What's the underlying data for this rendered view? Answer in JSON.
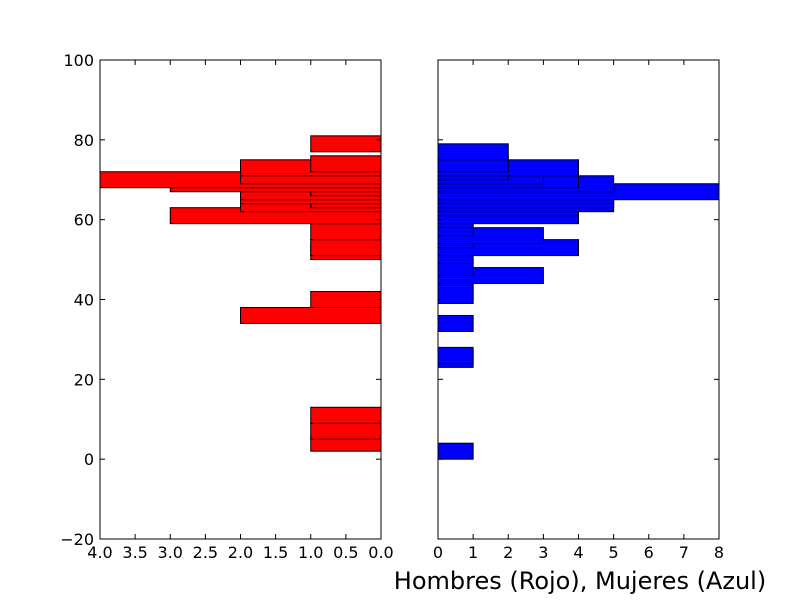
{
  "chart_data": [
    {
      "type": "bar",
      "orientation": "horizontal",
      "x_direction": "reversed",
      "bar_color": "#ff0000",
      "xlim": [
        4.0,
        0.0
      ],
      "ylim": [
        -20,
        100
      ],
      "xticks": [
        4.0,
        3.5,
        3.0,
        2.5,
        2.0,
        1.5,
        1.0,
        0.5,
        0.0
      ],
      "xtick_labels": [
        "4.0",
        "3.5",
        "3.0",
        "2.5",
        "2.0",
        "1.5",
        "1.0",
        "0.5",
        "0.0"
      ],
      "yticks": [
        -20,
        0,
        20,
        40,
        60,
        80,
        100
      ],
      "ytick_labels": [
        "−20",
        "0",
        "20",
        "40",
        "60",
        "80",
        "100"
      ],
      "bars": [
        {
          "y": 4,
          "value": 1
        },
        {
          "y": 7,
          "value": 1
        },
        {
          "y": 11,
          "value": 1
        },
        {
          "y": 36,
          "value": 2
        },
        {
          "y": 40,
          "value": 1
        },
        {
          "y": 52,
          "value": 1
        },
        {
          "y": 53,
          "value": 1
        },
        {
          "y": 57,
          "value": 1
        },
        {
          "y": 61,
          "value": 3
        },
        {
          "y": 64,
          "value": 2
        },
        {
          "y": 65,
          "value": 1
        },
        {
          "y": 66,
          "value": 2
        },
        {
          "y": 67,
          "value": 2
        },
        {
          "y": 68,
          "value": 1
        },
        {
          "y": 69,
          "value": 3
        },
        {
          "y": 70,
          "value": 4
        },
        {
          "y": 71,
          "value": 2
        },
        {
          "y": 73,
          "value": 2
        },
        {
          "y": 74,
          "value": 1
        },
        {
          "y": 79,
          "value": 1
        }
      ]
    },
    {
      "type": "bar",
      "orientation": "horizontal",
      "bar_color": "#0000ff",
      "xlim": [
        0,
        8
      ],
      "ylim": [
        -20,
        100
      ],
      "xticks": [
        0,
        1,
        2,
        3,
        4,
        5,
        6,
        7,
        8
      ],
      "xtick_labels": [
        "0",
        "1",
        "2",
        "3",
        "4",
        "5",
        "6",
        "7",
        "8"
      ],
      "bars": [
        {
          "y": 2,
          "value": 1
        },
        {
          "y": 25,
          "value": 1
        },
        {
          "y": 26,
          "value": 1
        },
        {
          "y": 34,
          "value": 1
        },
        {
          "y": 41,
          "value": 1
        },
        {
          "y": 42,
          "value": 1
        },
        {
          "y": 46,
          "value": 3
        },
        {
          "y": 48,
          "value": 1
        },
        {
          "y": 51,
          "value": 1
        },
        {
          "y": 53,
          "value": 4
        },
        {
          "y": 55,
          "value": 1
        },
        {
          "y": 56,
          "value": 3
        },
        {
          "y": 58,
          "value": 1
        },
        {
          "y": 60,
          "value": 1
        },
        {
          "y": 61,
          "value": 4
        },
        {
          "y": 63,
          "value": 4
        },
        {
          "y": 64,
          "value": 5
        },
        {
          "y": 65,
          "value": 5
        },
        {
          "y": 66,
          "value": 5
        },
        {
          "y": 67,
          "value": 8
        },
        {
          "y": 69,
          "value": 5
        },
        {
          "y": 70,
          "value": 4
        },
        {
          "y": 71,
          "value": 3
        },
        {
          "y": 72,
          "value": 2
        },
        {
          "y": 73,
          "value": 4
        },
        {
          "y": 74,
          "value": 2
        },
        {
          "y": 77,
          "value": 2
        }
      ]
    }
  ],
  "xlabel": "Hombres (Rojo), Mujeres (Azul)"
}
